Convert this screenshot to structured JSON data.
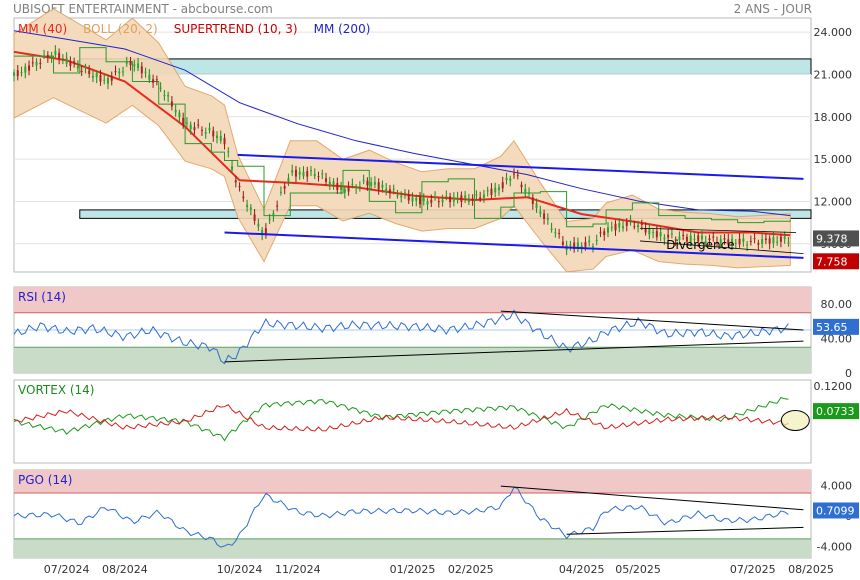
{
  "header": {
    "title": "UBISOFT ENTERTAINMENT - abcbourse.com",
    "period": "2 ANS - JOUR"
  },
  "colors": {
    "mm40": "#e8291c",
    "boll": "#e0a060",
    "supertrend": "#2a9a2a",
    "mm200": "#2222cc",
    "rsi_line": "#2f6fd0",
    "vortex_pos": "#1a9a1a",
    "vortex_neg": "#d42020",
    "overbought": "#f0c8c8",
    "oversold": "#c8dcc8",
    "price_badge": "#505050",
    "rsi_badge": "#2f6fd0",
    "vortex_badge": "#1a9a1a",
    "pgo_badge": "#2f6fd0",
    "st_badge": "#c00000"
  },
  "chart_data": [
    {
      "type": "line",
      "title": "UBISOFT ENTERTAINMENT",
      "legend": [
        {
          "label": "MM (40)",
          "color": "#e8291c"
        },
        {
          "label": "BOLL (20, 2)",
          "color": "#e0a060"
        },
        {
          "label": "SUPERTREND (10, 3)",
          "color": "#cc0000"
        },
        {
          "label": "MM (200)",
          "color": "#2222cc"
        }
      ],
      "y_ticks": [
        "24.000",
        "21.000",
        "18.000",
        "15.000",
        "12.000",
        "9.000"
      ],
      "ylim": [
        7.0,
        25.0
      ],
      "x_labels": [
        "07/2024",
        "08/2024",
        "10/2024",
        "11/2024",
        "01/2025",
        "02/2025",
        "04/2025",
        "05/2025",
        "07/2025",
        "08/2025"
      ],
      "x_label_dates": [
        "2024-07-01",
        "2024-08-01",
        "2024-10-01",
        "2024-11-01",
        "2025-01-01",
        "2025-02-01",
        "2025-04-01",
        "2025-05-01",
        "2025-07-01",
        "2025-08-01"
      ],
      "xlim": [
        "2024-06-03",
        "2025-08-01"
      ],
      "price": {
        "x": [
          "2024-06-03",
          "2024-06-24",
          "2024-07-08",
          "2024-07-22",
          "2024-08-05",
          "2024-08-19",
          "2024-09-02",
          "2024-09-16",
          "2024-09-23",
          "2024-09-30",
          "2024-10-14",
          "2024-10-28",
          "2024-11-11",
          "2024-11-25",
          "2024-12-09",
          "2024-12-23",
          "2025-01-06",
          "2025-01-20",
          "2025-02-03",
          "2025-02-17",
          "2025-02-24",
          "2025-03-10",
          "2025-03-24",
          "2025-04-07",
          "2025-04-14",
          "2025-04-28",
          "2025-05-12",
          "2025-05-26",
          "2025-06-09",
          "2025-06-23",
          "2025-07-07",
          "2025-07-21"
        ],
        "y": [
          20.9,
          22.5,
          21.5,
          20.5,
          21.9,
          20.3,
          17.5,
          16.9,
          16.3,
          13.1,
          9.6,
          14.0,
          14.0,
          12.8,
          13.4,
          12.6,
          12.0,
          12.2,
          12.2,
          13.0,
          14.0,
          11.3,
          8.8,
          9.0,
          10.0,
          10.5,
          9.6,
          9.4,
          9.3,
          9.1,
          9.2,
          9.3
        ]
      },
      "mm40": {
        "x": [
          "2024-06-03",
          "2024-07-01",
          "2024-08-01",
          "2024-09-02",
          "2024-10-01",
          "2024-11-01",
          "2024-12-02",
          "2025-01-02",
          "2025-02-03",
          "2025-03-03",
          "2025-04-01",
          "2025-05-02",
          "2025-06-02",
          "2025-07-01",
          "2025-07-21"
        ],
        "y": [
          22.6,
          22.0,
          20.5,
          17.3,
          13.5,
          13.3,
          13.0,
          12.4,
          12.1,
          12.3,
          11.1,
          10.5,
          9.8,
          9.8,
          9.6
        ]
      },
      "mm200": {
        "x": [
          "2024-06-03",
          "2024-07-01",
          "2024-08-01",
          "2024-09-02",
          "2024-10-01",
          "2024-11-01",
          "2024-12-02",
          "2025-01-02",
          "2025-02-03",
          "2025-03-03",
          "2025-04-01",
          "2025-05-02",
          "2025-06-02",
          "2025-07-01",
          "2025-07-21"
        ],
        "y": [
          24.1,
          23.5,
          22.8,
          21.3,
          19.0,
          17.5,
          16.3,
          15.4,
          14.6,
          13.9,
          12.9,
          12.0,
          11.4,
          11.3,
          11.0
        ]
      },
      "resistance_zones": [
        [
          21.0,
          22.1
        ],
        [
          10.8,
          11.4
        ]
      ],
      "trend_channel": {
        "upper": {
          "x": [
            "2024-09-30",
            "2025-07-28"
          ],
          "y": [
            15.3,
            13.6
          ]
        },
        "lower": {
          "x": [
            "2024-09-23",
            "2025-07-28"
          ],
          "y": [
            9.8,
            8.0
          ]
        }
      },
      "annotations": [
        {
          "text": "Divergence",
          "x": "2025-05-16",
          "y": 8.9
        }
      ],
      "last_price": "9.378",
      "supertrend_value": "7.758"
    },
    {
      "type": "line",
      "title": "RSI (14)",
      "y_ticks": [
        "80.00",
        "40.00",
        "0"
      ],
      "ylim": [
        0,
        100
      ],
      "zones": {
        "overbought": 70,
        "oversold": 30
      },
      "rsi": {
        "x": [
          "2024-06-03",
          "2024-06-17",
          "2024-07-01",
          "2024-07-15",
          "2024-08-01",
          "2024-08-15",
          "2024-09-02",
          "2024-09-16",
          "2024-09-23",
          "2024-09-30",
          "2024-10-14",
          "2024-11-01",
          "2024-11-15",
          "2024-12-02",
          "2025-01-02",
          "2025-01-20",
          "2025-02-03",
          "2025-02-17",
          "2025-02-24",
          "2025-03-10",
          "2025-03-24",
          "2025-04-07",
          "2025-04-14",
          "2025-05-02",
          "2025-05-16",
          "2025-06-02",
          "2025-06-16",
          "2025-07-01",
          "2025-07-21"
        ],
        "y": [
          45,
          55,
          48,
          52,
          42,
          50,
          35,
          30,
          13,
          22,
          58,
          55,
          52,
          56,
          54,
          50,
          55,
          63,
          68,
          47,
          28,
          38,
          48,
          60,
          45,
          48,
          43,
          46,
          53
        ]
      },
      "trendlines": [
        {
          "x": [
            "2025-02-17",
            "2025-07-28"
          ],
          "y": [
            72.0,
            50.0
          ]
        },
        {
          "x": [
            "2024-09-23",
            "2025-07-28"
          ],
          "y": [
            13.0,
            37.0
          ]
        }
      ],
      "last_value": "53.65"
    },
    {
      "type": "line",
      "title": "VORTEX (14)",
      "y_ticks": [
        "0.1200",
        "0.0733",
        "0"
      ],
      "ylim": [
        -0.25,
        0.15
      ],
      "series": [
        {
          "name": "VI+",
          "x": [
            "2024-06-03",
            "2024-07-01",
            "2024-08-01",
            "2024-09-02",
            "2024-09-23",
            "2024-10-14",
            "2024-11-15",
            "2024-12-16",
            "2025-01-20",
            "2025-02-24",
            "2025-03-24",
            "2025-04-14",
            "2025-05-16",
            "2025-06-16",
            "2025-07-21"
          ],
          "y": [
            -0.05,
            -0.1,
            -0.02,
            -0.05,
            -0.13,
            0.03,
            0.05,
            -0.03,
            0.0,
            0.02,
            -0.08,
            0.03,
            -0.02,
            -0.04,
            0.07
          ]
        },
        {
          "name": "VI-",
          "x": [
            "2024-06-03",
            "2024-07-01",
            "2024-08-01",
            "2024-09-02",
            "2024-09-23",
            "2024-10-14",
            "2024-11-15",
            "2024-12-16",
            "2025-01-20",
            "2025-02-24",
            "2025-03-24",
            "2025-04-14",
            "2025-05-16",
            "2025-06-16",
            "2025-07-21"
          ],
          "y": [
            -0.05,
            0.0,
            -0.08,
            -0.05,
            0.03,
            -0.08,
            -0.09,
            -0.03,
            -0.05,
            -0.08,
            0.0,
            -0.08,
            -0.04,
            -0.03,
            -0.06
          ]
        }
      ],
      "last_value": "0.0733"
    },
    {
      "type": "line",
      "title": "PGO (14)",
      "y_ticks": [
        "4.000",
        "0",
        "-4.000"
      ],
      "ylim": [
        -5.5,
        6.0
      ],
      "zones": {
        "overbought": 3.0,
        "oversold": -3.0
      },
      "pgo": {
        "x": [
          "2024-06-03",
          "2024-06-24",
          "2024-07-08",
          "2024-07-22",
          "2024-08-05",
          "2024-08-19",
          "2024-09-02",
          "2024-09-16",
          "2024-09-23",
          "2024-09-30",
          "2024-10-14",
          "2024-11-01",
          "2024-11-15",
          "2024-12-02",
          "2025-01-02",
          "2025-01-20",
          "2025-02-03",
          "2025-02-17",
          "2025-02-24",
          "2025-03-10",
          "2025-03-24",
          "2025-04-07",
          "2025-04-14",
          "2025-05-02",
          "2025-05-16",
          "2025-06-02",
          "2025-06-16",
          "2025-07-01",
          "2025-07-21"
        ],
        "y": [
          0.0,
          0.2,
          -1.0,
          1.2,
          -0.8,
          0.5,
          -2.0,
          -3.0,
          -4.2,
          -3.0,
          2.8,
          0.5,
          0.0,
          0.6,
          0.7,
          0.4,
          0.6,
          1.2,
          3.8,
          -0.3,
          -2.6,
          -1.6,
          0.8,
          1.2,
          -1.0,
          0.3,
          -0.6,
          -0.5,
          0.6
        ]
      },
      "trendlines": [
        {
          "x": [
            "2025-02-17",
            "2025-07-28"
          ],
          "y": [
            3.9,
            0.8
          ]
        },
        {
          "x": [
            "2025-03-24",
            "2025-07-28"
          ],
          "y": [
            -2.4,
            -1.5
          ]
        }
      ],
      "last_value": "0.7099"
    }
  ]
}
